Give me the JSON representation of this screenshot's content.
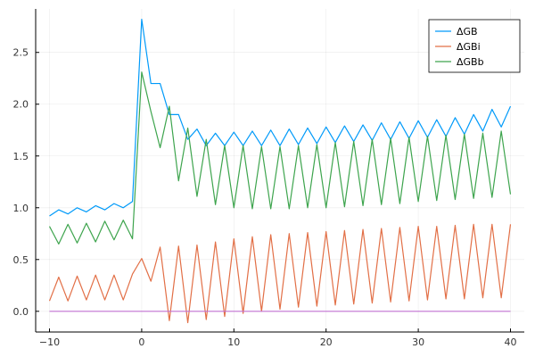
{
  "chart_data": {
    "type": "line",
    "x": [
      -10,
      -9,
      -8,
      -7,
      -6,
      -5,
      -4,
      -3,
      -2,
      -1,
      0,
      1,
      2,
      3,
      4,
      5,
      6,
      7,
      8,
      9,
      10,
      11,
      12,
      13,
      14,
      15,
      16,
      17,
      18,
      19,
      20,
      21,
      22,
      23,
      24,
      25,
      26,
      27,
      28,
      29,
      30,
      31,
      32,
      33,
      34,
      35,
      36,
      37,
      38,
      39,
      40
    ],
    "series": [
      {
        "name": "ΔGB",
        "color": "#009af9",
        "values": [
          0.92,
          0.98,
          0.94,
          1.0,
          0.96,
          1.02,
          0.98,
          1.04,
          1.0,
          1.06,
          2.82,
          2.2,
          2.2,
          1.9,
          1.9,
          1.66,
          1.76,
          1.6,
          1.72,
          1.6,
          1.73,
          1.6,
          1.74,
          1.6,
          1.75,
          1.6,
          1.76,
          1.61,
          1.77,
          1.62,
          1.78,
          1.63,
          1.79,
          1.64,
          1.8,
          1.65,
          1.82,
          1.66,
          1.83,
          1.67,
          1.84,
          1.68,
          1.85,
          1.69,
          1.87,
          1.71,
          1.9,
          1.74,
          1.95,
          1.78,
          1.98
        ]
      },
      {
        "name": "ΔGBi",
        "color": "#e26f46",
        "values": [
          0.1,
          0.33,
          0.1,
          0.34,
          0.11,
          0.35,
          0.11,
          0.35,
          0.11,
          0.36,
          0.51,
          0.29,
          0.62,
          -0.09,
          0.63,
          -0.11,
          0.64,
          -0.08,
          0.67,
          -0.05,
          0.7,
          -0.02,
          0.72,
          0.0,
          0.74,
          0.02,
          0.75,
          0.04,
          0.76,
          0.05,
          0.77,
          0.06,
          0.78,
          0.07,
          0.79,
          0.08,
          0.8,
          0.09,
          0.81,
          0.1,
          0.82,
          0.11,
          0.82,
          0.12,
          0.83,
          0.12,
          0.84,
          0.13,
          0.84,
          0.13,
          0.84
        ]
      },
      {
        "name": "ΔGBb",
        "color": "#3da44d",
        "values": [
          0.82,
          0.65,
          0.84,
          0.66,
          0.85,
          0.67,
          0.87,
          0.69,
          0.88,
          0.7,
          2.31,
          1.93,
          1.58,
          1.98,
          1.26,
          1.77,
          1.11,
          1.66,
          1.03,
          1.6,
          1.0,
          1.6,
          0.99,
          1.59,
          0.99,
          1.59,
          0.99,
          1.6,
          1.0,
          1.61,
          1.0,
          1.63,
          1.01,
          1.64,
          1.02,
          1.66,
          1.03,
          1.67,
          1.04,
          1.68,
          1.06,
          1.69,
          1.07,
          1.7,
          1.08,
          1.71,
          1.09,
          1.72,
          1.1,
          1.74,
          1.13
        ]
      },
      {
        "name": "",
        "color": "#c271d2",
        "values": [
          0,
          0,
          0,
          0,
          0,
          0,
          0,
          0,
          0,
          0,
          0,
          0,
          0,
          0,
          0,
          0,
          0,
          0,
          0,
          0,
          0,
          0,
          0,
          0,
          0,
          0,
          0,
          0,
          0,
          0,
          0,
          0,
          0,
          0,
          0,
          0,
          0,
          0,
          0,
          0,
          0,
          0,
          0,
          0,
          0,
          0,
          0,
          0,
          0,
          0,
          0
        ]
      }
    ],
    "xticks": [
      -10,
      0,
      10,
      20,
      30,
      40
    ],
    "xtick_labels": [
      "−10",
      "0",
      "10",
      "20",
      "30",
      "40"
    ],
    "yticks": [
      0.0,
      0.5,
      1.0,
      1.5,
      2.0,
      2.5
    ],
    "ytick_labels": [
      "0.0",
      "0.5",
      "1.0",
      "1.5",
      "2.0",
      "2.5"
    ],
    "xlim": [
      -11.5,
      41.5
    ],
    "ylim": [
      -0.2,
      2.92
    ],
    "title": "",
    "xlabel": "",
    "ylabel": "",
    "grid": true,
    "legend_position": "top-right"
  }
}
